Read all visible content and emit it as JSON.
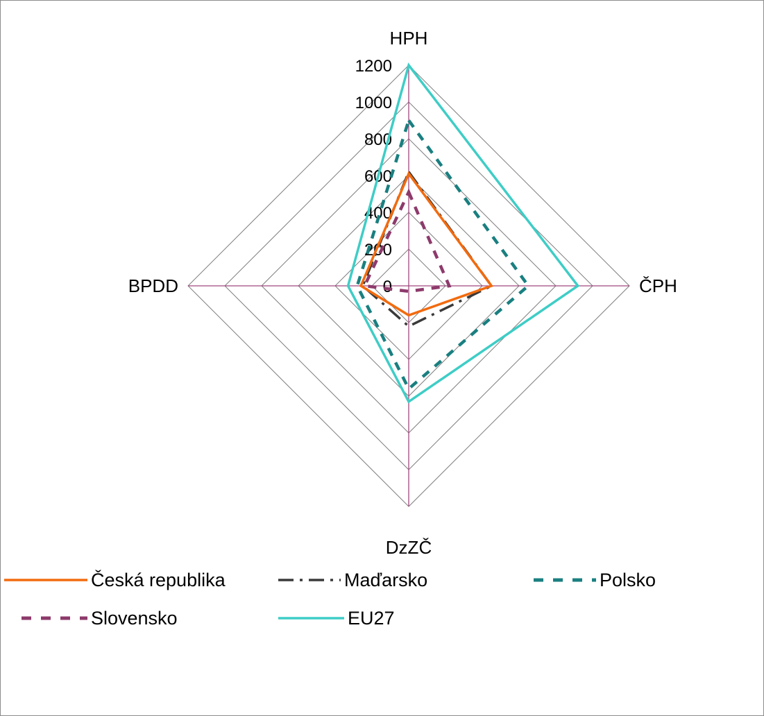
{
  "chart_data": {
    "type": "radar",
    "categories": [
      "HPH",
      "ČPH",
      "DzZČ",
      "BPDD"
    ],
    "rlim": [
      0,
      1200
    ],
    "ticks": [
      0,
      200,
      400,
      600,
      800,
      1000,
      1200
    ],
    "tick_labels": [
      "0",
      "200",
      "400",
      "600",
      "800",
      "1000",
      "1200"
    ],
    "gridlines": true,
    "legend_position": "bottom",
    "series": [
      {
        "name": "Česká republika",
        "values": [
          610,
          450,
          160,
          260
        ],
        "color": "#f26b0f",
        "style": "solid"
      },
      {
        "name": "Maďarsko",
        "values": [
          620,
          450,
          220,
          250
        ],
        "color": "#3a3a3a",
        "style": "dash-dot"
      },
      {
        "name": "Polsko",
        "values": [
          900,
          650,
          560,
          280
        ],
        "color": "#1a7f80",
        "style": "dashed"
      },
      {
        "name": "Slovensko",
        "values": [
          510,
          220,
          30,
          240
        ],
        "color": "#8d3a6b",
        "style": "dashed"
      },
      {
        "name": "EU27",
        "values": [
          1200,
          920,
          630,
          330
        ],
        "color": "#3ecdc6",
        "style": "solid"
      }
    ]
  }
}
